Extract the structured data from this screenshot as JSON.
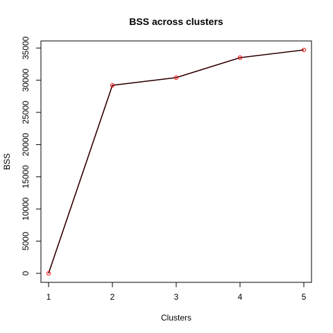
{
  "chart_data": {
    "type": "line",
    "title": "BSS across clusters",
    "xlabel": "Clusters",
    "ylabel": "BSS",
    "x": [
      1,
      2,
      3,
      4,
      5
    ],
    "series": [
      {
        "values": [
          0,
          29200,
          30400,
          33500,
          34700
        ],
        "line_color": "#000000",
        "marker_color": "#ff0000"
      }
    ],
    "overlay_line": {
      "values": [
        0,
        29200,
        30400,
        33500,
        34700
      ],
      "color": "#8b0000"
    },
    "xlim": [
      0.88,
      5.12
    ],
    "ylim": [
      -1400,
      36100
    ],
    "xticks": [
      1,
      2,
      3,
      4,
      5
    ],
    "xtick_labels": [
      "1",
      "2",
      "3",
      "4",
      "5"
    ],
    "yticks": [
      0,
      5000,
      10000,
      15000,
      20000,
      25000,
      30000,
      35000
    ],
    "ytick_labels": [
      "0",
      "5000",
      "10000",
      "15000",
      "20000",
      "25000",
      "30000",
      "35000"
    ],
    "grid": false,
    "legend": "none"
  }
}
